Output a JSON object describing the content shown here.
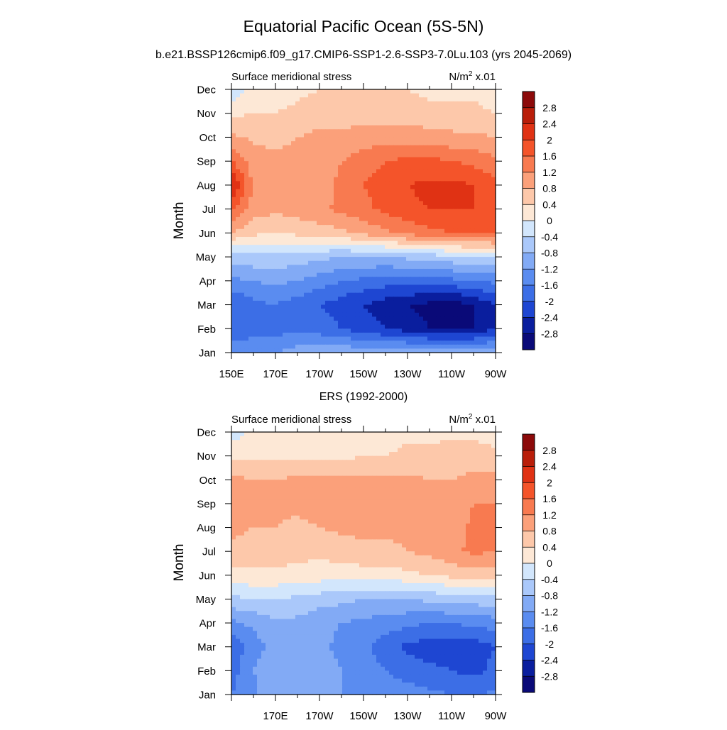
{
  "title": "Equatorial Pacific Ocean (5S-5N)",
  "subtitle": "b.e21.BSSP126cmip6.f09_g17.CMIP6-SSP1-2.6-SSP3-7.0Lu.103 (yrs 2045-2069)",
  "colors": {
    "levels": [
      "#0a0a78",
      "#0a1e9e",
      "#1e46d2",
      "#3c6ee6",
      "#5a8cf0",
      "#82aaf5",
      "#aac8fa",
      "#d2e6fc",
      "#fde8d6",
      "#fdc8aa",
      "#fba07a",
      "#f87a50",
      "#f4542a",
      "#e03214",
      "#b91e0a",
      "#8c0a0a"
    ]
  },
  "chart_data": [
    {
      "type": "heatmap",
      "panel_title": "",
      "left_label": "Surface meridional stress",
      "right_label_base": "N/m",
      "right_label_sup": "2",
      "right_label_tail": " x.01",
      "ylabel": "Month",
      "xlabel": "",
      "x_ticks": [
        "150E",
        "170E",
        "170W",
        "150W",
        "130W",
        "110W",
        "90W"
      ],
      "y_ticks": [
        "Jan",
        "Feb",
        "Mar",
        "Apr",
        "May",
        "Jun",
        "Jul",
        "Aug",
        "Sep",
        "Oct",
        "Nov",
        "Dec"
      ],
      "xlim": [
        150,
        270
      ],
      "ylim": [
        "Jan",
        "Dec"
      ],
      "contour_levels": [
        -2.8,
        -2.4,
        -2,
        -1.6,
        -1.2,
        -0.8,
        -0.4,
        0,
        0.4,
        0.8,
        1.2,
        1.6,
        2,
        2.4,
        2.8
      ],
      "colorbar_labels": [
        "2.8",
        "2.4",
        "2",
        "1.6",
        "1.2",
        "0.8",
        "0.4",
        "0",
        "-0.4",
        "-0.8",
        "-1.2",
        "-1.6",
        "-2",
        "-2.4",
        "-2.8"
      ],
      "grid_lon": [
        150,
        160,
        170,
        180,
        190,
        200,
        210,
        220,
        230,
        240,
        250,
        260,
        270
      ],
      "values": [
        [
          -1.3,
          -1.3,
          -1.2,
          -1.0,
          -1.0,
          -0.9,
          -0.9,
          -0.9,
          -0.9,
          -0.9,
          -0.9,
          -0.9,
          -0.9
        ],
        [
          -1.9,
          -1.8,
          -1.8,
          -1.7,
          -1.8,
          -2.0,
          -2.2,
          -2.4,
          -2.6,
          -2.8,
          -2.9,
          -2.8,
          -2.4
        ],
        [
          -2.0,
          -1.7,
          -1.6,
          -1.8,
          -2.0,
          -2.2,
          -2.4,
          -2.6,
          -2.8,
          -2.9,
          -3.0,
          -2.8,
          -2.4
        ],
        [
          -1.3,
          -1.2,
          -1.1,
          -1.2,
          -1.4,
          -1.6,
          -1.7,
          -1.8,
          -1.8,
          -1.8,
          -1.7,
          -1.6,
          -1.5
        ],
        [
          -0.6,
          -0.5,
          -0.5,
          -0.6,
          -0.7,
          -0.8,
          -0.8,
          -0.8,
          -0.7,
          -0.6,
          -0.5,
          -0.4,
          -0.3
        ],
        [
          0.8,
          0.5,
          0.4,
          0.5,
          0.6,
          0.7,
          0.9,
          1.1,
          1.3,
          1.5,
          1.6,
          1.6,
          1.6
        ],
        [
          1.7,
          1.0,
          0.9,
          1.0,
          1.1,
          1.3,
          1.5,
          1.7,
          1.9,
          2.0,
          2.0,
          2.0,
          1.9
        ],
        [
          2.5,
          1.1,
          0.9,
          0.9,
          1.0,
          1.3,
          1.6,
          1.8,
          2.0,
          2.1,
          2.1,
          2.0,
          1.7
        ],
        [
          1.6,
          1.0,
          0.9,
          0.9,
          1.0,
          1.2,
          1.4,
          1.6,
          1.7,
          1.7,
          1.6,
          1.5,
          1.3
        ],
        [
          0.9,
          0.7,
          0.7,
          0.8,
          0.9,
          0.9,
          1.0,
          1.0,
          1.0,
          1.0,
          0.9,
          0.9,
          0.8
        ],
        [
          0.3,
          0.4,
          0.4,
          0.5,
          0.6,
          0.6,
          0.6,
          0.6,
          0.6,
          0.5,
          0.5,
          0.5,
          0.4
        ],
        [
          -0.3,
          0.1,
          0.2,
          0.3,
          0.4,
          0.4,
          0.4,
          0.4,
          0.4,
          0.3,
          0.3,
          0.3,
          0.2
        ]
      ]
    },
    {
      "type": "heatmap",
      "panel_title": "ERS (1992-2000)",
      "left_label": "Surface meridional stress",
      "right_label_base": "N/m",
      "right_label_sup": "2",
      "right_label_tail": " x.01",
      "ylabel": "Month",
      "xlabel": "",
      "x_ticks": [
        "",
        "170E",
        "170W",
        "150W",
        "130W",
        "110W",
        "90W"
      ],
      "y_ticks": [
        "Jan",
        "Feb",
        "Mar",
        "Apr",
        "May",
        "Jun",
        "Jul",
        "Aug",
        "Sep",
        "Oct",
        "Nov",
        "Dec"
      ],
      "xlim": [
        150,
        270
      ],
      "ylim": [
        "Jan",
        "Dec"
      ],
      "contour_levels": [
        -2.8,
        -2.4,
        -2,
        -1.6,
        -1.2,
        -0.8,
        -0.4,
        0,
        0.4,
        0.8,
        1.2,
        1.6,
        2,
        2.4,
        2.8
      ],
      "colorbar_labels": [
        "2.8",
        "2.4",
        "2",
        "1.6",
        "1.2",
        "0.8",
        "0.4",
        "0",
        "-0.4",
        "-0.8",
        "-1.2",
        "-1.6",
        "-2",
        "-2.4",
        "-2.8"
      ],
      "grid_lon": [
        150,
        160,
        170,
        180,
        190,
        200,
        210,
        220,
        230,
        240,
        250,
        260,
        270
      ],
      "values": [
        [
          -1.6,
          -1.3,
          -0.9,
          -0.9,
          -1.0,
          -1.2,
          -1.2,
          -1.3,
          -1.4,
          -1.5,
          -1.6,
          -1.7,
          -1.5
        ],
        [
          -1.8,
          -1.2,
          -0.9,
          -1.0,
          -1.0,
          -1.2,
          -1.4,
          -1.6,
          -1.8,
          -1.9,
          -2.0,
          -2.1,
          -1.9
        ],
        [
          -1.9,
          -1.4,
          -1.0,
          -1.0,
          -1.1,
          -1.3,
          -1.5,
          -1.8,
          -2.1,
          -2.2,
          -2.2,
          -2.2,
          -2.0
        ],
        [
          -1.3,
          -1.1,
          -0.9,
          -0.9,
          -1.1,
          -1.2,
          -1.3,
          -1.4,
          -1.5,
          -1.6,
          -1.6,
          -1.5,
          -1.4
        ],
        [
          -0.5,
          -0.4,
          -0.4,
          -0.5,
          -0.6,
          -0.7,
          -0.8,
          -0.8,
          -0.8,
          -0.7,
          -0.6,
          -0.6,
          -0.5
        ],
        [
          0.3,
          0.3,
          0.3,
          0.3,
          0.2,
          0.2,
          0.2,
          0.2,
          0.3,
          0.4,
          0.5,
          0.6,
          0.6
        ],
        [
          0.7,
          0.6,
          0.6,
          0.5,
          0.5,
          0.6,
          0.7,
          0.7,
          0.8,
          0.9,
          1.1,
          1.3,
          1.2
        ],
        [
          0.9,
          0.8,
          0.8,
          0.7,
          0.8,
          0.9,
          0.9,
          0.9,
          0.9,
          0.8,
          1.0,
          1.3,
          1.3
        ],
        [
          1.2,
          0.9,
          0.9,
          0.9,
          1.0,
          1.0,
          1.0,
          1.0,
          1.0,
          0.9,
          0.9,
          1.2,
          1.2
        ],
        [
          0.9,
          0.8,
          0.8,
          0.9,
          0.9,
          0.9,
          0.9,
          0.9,
          0.9,
          0.8,
          0.8,
          0.9,
          1.0
        ],
        [
          0.3,
          0.3,
          0.3,
          0.3,
          0.3,
          0.3,
          0.4,
          0.4,
          0.5,
          0.5,
          0.6,
          0.6,
          0.5
        ],
        [
          -0.2,
          0.1,
          0.2,
          0.1,
          0.1,
          0.1,
          0.2,
          0.2,
          0.3,
          0.3,
          0.3,
          0.3,
          0.2
        ]
      ]
    }
  ]
}
